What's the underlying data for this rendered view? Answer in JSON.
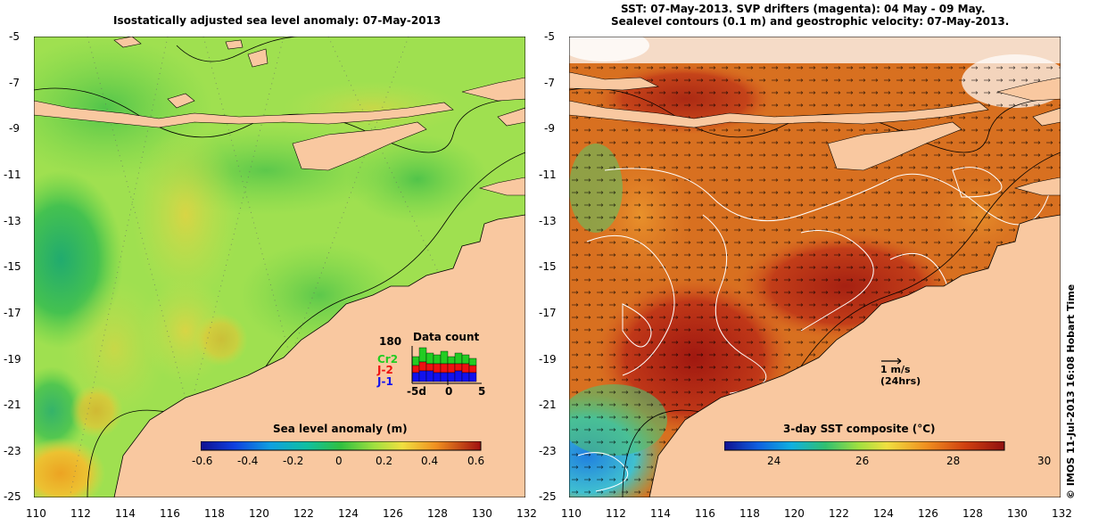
{
  "left_panel": {
    "title": "Isostatically adjusted sea level anomaly: 07-May-2013",
    "colorbar_title": "Sea level anomaly (m)",
    "colorbar_ticks": [
      "-0.6",
      "-0.4",
      "-0.2",
      "0",
      "0.2",
      "0.4",
      "0.6"
    ],
    "data_count": {
      "title": "Data count",
      "max_label": "180",
      "satellites": [
        {
          "name": "Cr2",
          "color": "#22cc22"
        },
        {
          "name": "J-2",
          "color": "#ee1111"
        },
        {
          "name": "J-1",
          "color": "#1111ee"
        }
      ],
      "x_ticks": [
        "-5d",
        "0",
        "5"
      ]
    }
  },
  "right_panel": {
    "title_line1": "SST: 07-May-2013. SVP drifters (magenta): 04 May - 09 May.",
    "title_line2": "Sealevel contours (0.1 m) and geostrophic velocity: 07-May-2013.",
    "colorbar_title": "3-day SST composite (°C)",
    "colorbar_ticks": [
      "24",
      "26",
      "28",
      "30"
    ],
    "scale_arrow": {
      "line1": "1 m/s",
      "line2": "(24hrs)"
    }
  },
  "y_ticks": [
    "-5",
    "-7",
    "-9",
    "-11",
    "-13",
    "-15",
    "-17",
    "-19",
    "-21",
    "-23",
    "-25"
  ],
  "x_ticks": [
    "110",
    "112",
    "114",
    "116",
    "118",
    "120",
    "122",
    "124",
    "126",
    "128",
    "130",
    "132"
  ],
  "credit": "© IMOS 11-Jul-2013 16:08 Hobart Time",
  "colors": {
    "land": "#f9c8a0",
    "sla_base": "#9fe050",
    "sst_base": "#d87020"
  }
}
